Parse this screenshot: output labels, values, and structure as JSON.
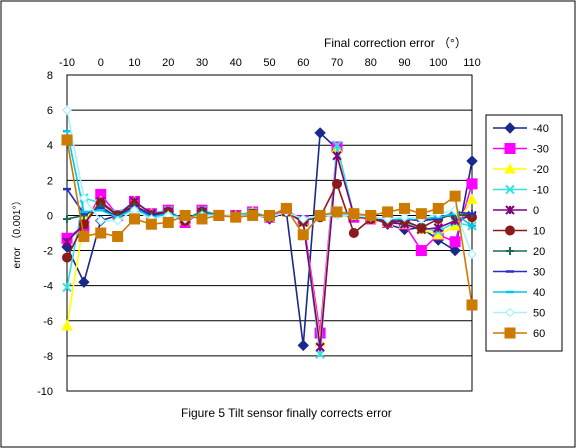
{
  "chart_data": {
    "type": "line",
    "title": "Figure 5 Tilt sensor finally corrects error",
    "xlabel": "Final correction error （°）",
    "ylabel": "error （0.001°）",
    "x": [
      -10,
      -5,
      0,
      5,
      10,
      15,
      20,
      25,
      30,
      35,
      40,
      45,
      50,
      55,
      60,
      65,
      70,
      75,
      80,
      85,
      90,
      95,
      100,
      105,
      110
    ],
    "x_tick_labels": [
      "-10",
      "0",
      "10",
      "20",
      "30",
      "40",
      "50",
      "60",
      "70",
      "80",
      "90",
      "100",
      "110"
    ],
    "y_tick_labels": [
      "8",
      "6",
      "4",
      "2",
      "0",
      "-2",
      "-4",
      "-6",
      "-8",
      "-10"
    ],
    "xlim": [
      -10,
      110
    ],
    "ylim": [
      -10,
      8
    ],
    "grid": "horizontal",
    "legend_position": "right",
    "series": [
      {
        "name": "-40",
        "color": "#1a2a8a",
        "marker": "diamond",
        "values": [
          -1.8,
          -3.8,
          -0.3,
          0.0,
          0.5,
          0.1,
          0.2,
          -0.4,
          0.2,
          0.0,
          0.0,
          0.1,
          -0.2,
          0.2,
          -7.4,
          4.7,
          3.8,
          0.0,
          -0.1,
          -0.5,
          -0.8,
          -0.7,
          -1.4,
          -2.0,
          3.1
        ]
      },
      {
        "name": "-30",
        "color": "#ff00ff",
        "marker": "square",
        "values": [
          -1.3,
          -0.6,
          1.2,
          0.0,
          0.8,
          0.1,
          0.3,
          -0.4,
          0.3,
          0.0,
          0.0,
          0.2,
          -0.1,
          0.3,
          -0.3,
          -6.7,
          3.9,
          -0.1,
          -0.2,
          -0.4,
          -0.5,
          -2.0,
          -1.1,
          -1.5,
          1.8
        ]
      },
      {
        "name": "-20",
        "color": "#ffff00",
        "marker": "triangle",
        "values": [
          -6.3,
          -0.3,
          0.8,
          0.0,
          0.8,
          0.1,
          0.2,
          -0.3,
          0.2,
          0.0,
          0.0,
          0.2,
          -0.1,
          0.2,
          -0.4,
          -7.2,
          3.8,
          0.0,
          -0.2,
          -0.4,
          -0.5,
          -0.8,
          -1.1,
          -0.6,
          0.9
        ]
      },
      {
        "name": "-10",
        "color": "#33e0e0",
        "marker": "x",
        "values": [
          -4.1,
          1.0,
          0.7,
          0.1,
          0.8,
          0.1,
          0.3,
          -0.3,
          0.3,
          0.0,
          0.0,
          0.2,
          -0.1,
          0.2,
          -0.3,
          -7.9,
          4.0,
          0.0,
          -0.1,
          -0.4,
          -0.4,
          -0.7,
          -0.9,
          -0.4,
          -0.6
        ]
      },
      {
        "name": "0",
        "color": "#800080",
        "marker": "star",
        "values": [
          -1.5,
          -0.5,
          0.8,
          0.0,
          0.8,
          0.1,
          0.2,
          -0.3,
          0.2,
          0.0,
          0.0,
          0.1,
          -0.1,
          0.2,
          -0.4,
          -7.5,
          3.4,
          0.0,
          -0.2,
          -0.4,
          -0.5,
          -0.8,
          -0.7,
          -0.3,
          0.0
        ]
      },
      {
        "name": "10",
        "color": "#8b1a1a",
        "marker": "circle",
        "values": [
          -2.4,
          -0.5,
          0.7,
          0.0,
          0.6,
          0.0,
          0.2,
          -0.3,
          0.2,
          0.0,
          0.0,
          0.1,
          -0.1,
          0.2,
          -0.3,
          -0.1,
          1.8,
          -1.0,
          -0.2,
          -0.4,
          -0.3,
          -0.7,
          -0.2,
          0.1,
          -0.1
        ]
      },
      {
        "name": "20",
        "color": "#1a6b5a",
        "marker": "plus",
        "values": [
          -0.2,
          0.0,
          0.5,
          -0.1,
          0.5,
          0.0,
          0.1,
          -0.2,
          0.2,
          0.0,
          0.0,
          0.1,
          -0.1,
          0.2,
          -0.2,
          -0.1,
          0.1,
          -0.1,
          -0.1,
          -0.3,
          -0.2,
          -0.3,
          -0.1,
          0.0,
          0.1
        ]
      },
      {
        "name": "30",
        "color": "#2b2bc8",
        "marker": "dash",
        "values": [
          1.5,
          0.1,
          0.4,
          -0.1,
          0.5,
          0.0,
          0.1,
          -0.2,
          0.1,
          0.0,
          0.0,
          0.1,
          -0.1,
          0.2,
          -0.2,
          0.0,
          0.0,
          0.0,
          -0.1,
          -0.3,
          -0.2,
          -0.3,
          -0.2,
          0.2,
          0.1
        ]
      },
      {
        "name": "40",
        "color": "#00c8e8",
        "marker": "dash",
        "values": [
          4.8,
          0.2,
          0.3,
          -0.1,
          0.4,
          -0.1,
          0.1,
          -0.2,
          0.1,
          0.0,
          0.0,
          0.1,
          -0.1,
          0.2,
          -0.2,
          0.0,
          0.1,
          0.0,
          -0.1,
          -0.2,
          -0.2,
          -0.2,
          -0.1,
          0.1,
          -0.6
        ]
      },
      {
        "name": "50",
        "color": "#a8f0ff",
        "marker": "diamond-open",
        "values": [
          6.0,
          1.0,
          -0.3,
          -0.3,
          0.3,
          -0.2,
          0.0,
          -0.2,
          0.0,
          0.0,
          0.0,
          0.0,
          -0.1,
          0.2,
          -0.2,
          0.0,
          0.0,
          0.0,
          -0.1,
          -0.2,
          -0.1,
          -0.2,
          0.1,
          0.3,
          -2.2
        ]
      },
      {
        "name": "60",
        "color": "#cc7a00",
        "marker": "square",
        "values": [
          4.3,
          -1.2,
          -1.0,
          -1.2,
          -0.2,
          -0.5,
          -0.4,
          0.0,
          -0.2,
          0.0,
          -0.1,
          0.0,
          0.0,
          0.4,
          -1.1,
          0.0,
          0.2,
          0.1,
          0.0,
          0.2,
          0.4,
          0.1,
          0.4,
          1.1,
          -5.1
        ]
      }
    ]
  }
}
